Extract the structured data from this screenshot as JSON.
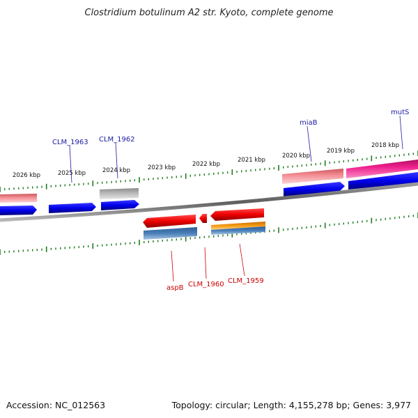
{
  "title": "Clostridium botulinum A2 str. Kyoto, complete genome",
  "footer": {
    "accession": "Accession: NC_012563",
    "summary": "Topology: circular; Length: 4,155,278 bp; Genes: 3,977"
  },
  "scale": {
    "labels": [
      "2026 kbp",
      "2025 kbp",
      "2024 kbp",
      "2023 kbp",
      "2022 kbp",
      "2021 kbp",
      "2020 kbp",
      "2019 kbp",
      "2018 kbp"
    ]
  },
  "gene_labels": {
    "clm_1963": "CLM_1963",
    "clm_1962": "CLM_1962",
    "miab": "miaB",
    "muts": "mutS",
    "aspb": "aspB",
    "clm_1960": "CLM_1960",
    "clm_1959": "CLM_1959"
  },
  "colors": {
    "backbone": "#7f7f7f",
    "tick": "#1f7a1f",
    "cds_blue": "#0000ee",
    "rna_pink": "#f07f86",
    "gray_feature": "#a8a8a8",
    "magenta": "#ee1a8a",
    "red": "#ee0000",
    "steelblue": "#4a7fb8",
    "orange": "#f39a0a",
    "label_blue": "#1a1aa6",
    "label_red": "#cc0000"
  }
}
